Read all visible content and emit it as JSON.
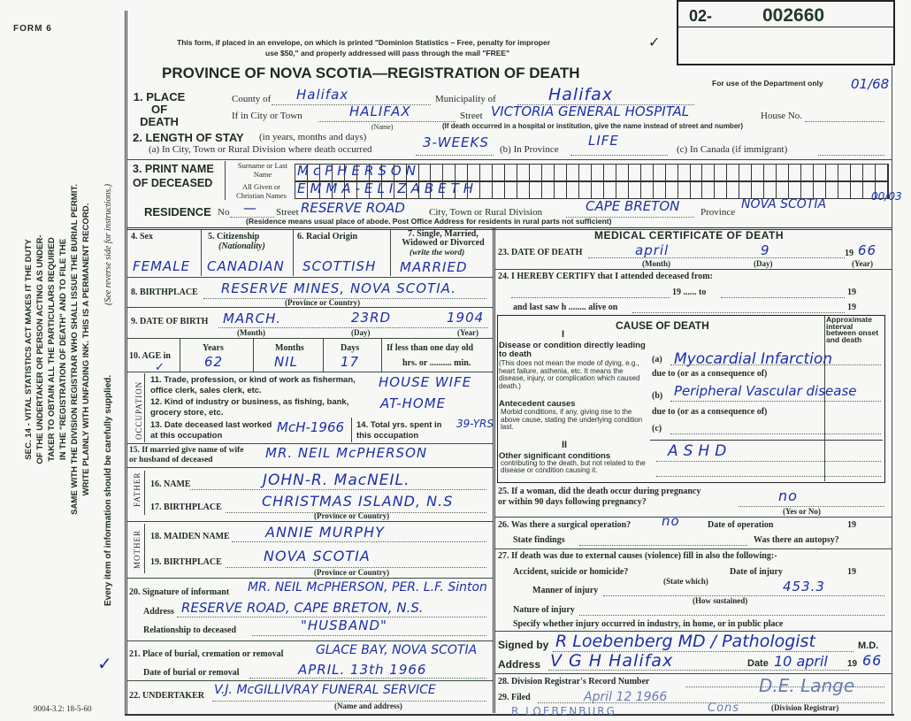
{
  "header": {
    "form_number": "FORM 6",
    "mail_notice_1": "This form, if placed in an envelope, on which is printed \"Dominion Statistics – Free, penalty for improper",
    "mail_notice_2": "use $50,\" and properly addressed will pass through the mail \"FREE\"",
    "title": "PROVINCE OF NOVA SCOTIA—REGISTRATION OF DEATH",
    "registration_prefix": "02-",
    "registration_number": "002660",
    "department_note": "For use of the Department only",
    "department_code": "01/68"
  },
  "sidebar": {
    "act_lines": [
      "SEC. 14 - VITAL STATISTICS ACT MAKES IT THE DUTY",
      "OF THE UNDERTAKER OR PERSON ACTING AS UNDER-",
      "TAKER TO OBTAIN ALL THE PARTICULARS REQUIRED",
      "IN THE \"REGISTRATION OF DEATH\" AND TO FILE THE",
      "SAME WITH THE DIVISION REGISTRAR WHO SHALL ISSUE THE BURIAL PERMIT.",
      "WRITE PLAINLY WITH UNFADING INK. THIS IS A PERMANENT RECORD."
    ],
    "every_item": "Every item of information should be carefully supplied.",
    "reverse_note": "(See reverse side for instructions.)",
    "print_code": "9004-3.2: 18-5-60"
  },
  "place": {
    "label": "1. PLACE OF DEATH",
    "county_label": "County of",
    "county": "Halifax",
    "municipality_label": "Municipality of",
    "municipality": "Halifax",
    "city_label": "If in City or Town",
    "city": "HALIFAX",
    "name_note": "(Name)",
    "street_label": "Street",
    "street": "VICTORIA GENERAL HOSPITAL",
    "house_label": "House No.",
    "hospital_note": "(If death occurred in a hospital or institution, give the name instead of street and number)"
  },
  "stay": {
    "label": "2. LENGTH OF STAY",
    "label_note": "(in years, months and days)",
    "a_label": "(a) In City, Town or Rural Division where death occurred",
    "a": "3-WEEKS",
    "b_label": "(b) In Province",
    "b": "LIFE",
    "c_label": "(c) In Canada (if immigrant)"
  },
  "name": {
    "label": "3. PRINT NAME OF DECEASED",
    "surname_label": "Surname or Last Name",
    "surname": "McPHERSON",
    "given_label": "All Given or Christian Names",
    "given": "EMMA-ELIZABETH"
  },
  "residence": {
    "label": "RESIDENCE",
    "no_label": "No",
    "no": "—",
    "street_label": "Street",
    "street": "RESERVE ROAD",
    "city_label": "City, Town or Rural Division",
    "city": "CAPE BRETON",
    "province_label": "Province",
    "province": "NOVA SCOTIA",
    "code": "00/03",
    "note": "(Residence means usual place of abode. Post Office Address for residents in rural parts not sufficient)"
  },
  "personal": {
    "sex_label": "4. Sex",
    "sex": "FEMALE",
    "citizenship_label": "5. Citizenship",
    "citizenship_note": "(Nationality)",
    "citizenship": "CANADIAN",
    "origin_label": "6. Racial Origin",
    "origin": "SCOTTISH",
    "marital_label": "7. Single, Married, Widowed or Divorced",
    "marital_note": "(write the word)",
    "marital": "MARRIED",
    "birthplace_label": "8. BIRTHPLACE",
    "birthplace": "RESERVE MINES, NOVA SCOTIA.",
    "province_note": "(Province or Country)",
    "dob_label": "9. DATE OF BIRTH",
    "dob_month": "MARCH.",
    "dob_day": "23RD",
    "dob_year": "1904",
    "month_note": "(Month)",
    "day_note": "(Day)",
    "year_note": "(Year)",
    "age_label": "10. AGE in",
    "years_label": "Years",
    "years": "62",
    "months_label": "Months",
    "months": "NIL",
    "days_label": "Days",
    "days": "17",
    "less_label": "If less than one day old",
    "hrs_label": "hrs. or .......... min."
  },
  "occupation": {
    "side": "OCCUPATION",
    "q11": "11. Trade, profession, or kind of work as fisherman, office clerk, sales clerk, etc.",
    "a11": "HOUSE WIFE",
    "q12": "12. Kind of industry or business, as fishing, bank, grocery store, etc.",
    "a12": "AT-HOME",
    "q13": "13. Date deceased last worked at this occupation",
    "a13": "McH-1966",
    "q14": "14. Total yrs. spent in this occupation",
    "a14": "39-YRS"
  },
  "spouse": {
    "label": "15. If married give name of wife or husband of deceased",
    "value": "MR. NEIL McPHERSON"
  },
  "father": {
    "side": "FATHER",
    "name_label": "16. NAME",
    "name": "JOHN-R. MacNEIL.",
    "birthplace_label": "17. BIRTHPLACE",
    "birthplace": "CHRISTMAS ISLAND, N.S",
    "note": "(Province or Country)"
  },
  "mother": {
    "side": "MOTHER",
    "name_label": "18. MAIDEN NAME",
    "name": "ANNIE MURPHY",
    "birthplace_label": "19. BIRTHPLACE",
    "birthplace": "NOVA SCOTIA",
    "note": "(Province or Country)"
  },
  "informant": {
    "label": "20. Signature of informant",
    "signature": "MR. NEIL McPHERSON, PER. L.F. Sinton",
    "address_label": "Address",
    "address": "RESERVE ROAD, CAPE BRETON, N.S.",
    "relationship_label": "Relationship to deceased",
    "relationship": "\"HUSBAND\""
  },
  "burial": {
    "place_label": "21. Place of burial, cremation or removal",
    "place": "GLACE BAY, NOVA SCOTIA",
    "date_label": "Date of burial or removal",
    "date": "APRIL. 13th 1966"
  },
  "undertaker": {
    "label": "22. UNDERTAKER",
    "value": "V.J. McGILLIVRAY FUNERAL SERVICE",
    "note": "(Name and address)"
  },
  "medical": {
    "title": "MEDICAL CERTIFICATE OF DEATH",
    "dod_label": "23. DATE OF DEATH",
    "dod_month": "april",
    "dod_day": "9",
    "dod_year_prefix": "19",
    "dod_year": "66",
    "month_note": "(Month)",
    "day_note": "(Day)",
    "year_note": "(Year)",
    "certify": "24. I HEREBY CERTIFY that I attended deceased from:",
    "from_line": "19 ...... to",
    "to_year": "19",
    "last_saw": "and last saw h ........ alive on",
    "last_year": "19"
  },
  "cause": {
    "title": "CAUSE OF DEATH",
    "part1": "I",
    "disease_label": "Disease or condition directly leading to death",
    "disease_note": "(This does not mean the mode of dying, e.g., heart failure, asthenia, etc. It means the disease, injury, or complication which caused death.)",
    "a_label": "(a)",
    "a": "Myocardial Infarction",
    "due1": "due to (or as a consequence of)",
    "b_label": "(b)",
    "b": "Peripheral Vascular disease",
    "due2": "due to (or as a consequence of)",
    "c_label": "(c)",
    "antecedent_label": "Antecedent causes",
    "antecedent_note": "Morbid conditions, if any, giving rise to the above cause, stating the underlying condition last.",
    "part2": "II",
    "other_label": "Other significant conditions",
    "other_note": "contributing to the death, but not related to the disease or condition causing it.",
    "other": "ASHD",
    "interval_label": "Approximate interval between onset and death"
  },
  "q25": {
    "label": "25. If a woman, did the death occur during pregnancy or within 90 days following pregnancy?",
    "value": "no",
    "note": "(Yes or No)"
  },
  "q26": {
    "label": "26. Was there a surgical operation?",
    "value": "no",
    "date_label": "Date of operation",
    "year": "19",
    "findings_label": "State findings",
    "autopsy_label": "Was there an autopsy?"
  },
  "q27": {
    "label": "27. If death was due to external causes (violence) fill in also the following:-",
    "accident_label": "Accident, suicide or homicide?",
    "state_note": "(State which)",
    "injury_date_label": "Date of injury",
    "year": "19",
    "manner_label": "Manner of injury",
    "how_note": "(How sustained)",
    "code": "453.3",
    "nature_label": "Nature of injury",
    "specify_label": "Specify whether injury occurred in industry, in home, or in public place"
  },
  "signature": {
    "signed_label": "Signed by",
    "signed": "R Loebenberg MD / Pathologist",
    "md": "M.D.",
    "address_label": "Address",
    "address": "V G H   Halifax",
    "date_label": "Date",
    "date": "10 april",
    "year_prefix": "19",
    "year": "66"
  },
  "registrar": {
    "q28": "28. Division Registrar's Record Number",
    "q29": "29. Filed",
    "filed": "April 12 1966",
    "registrar_sig": "D.E. Lange",
    "registrar_note": "(Division Registrar)",
    "stamp_name": "R LOEBENBURG",
    "extra": "Cons"
  }
}
